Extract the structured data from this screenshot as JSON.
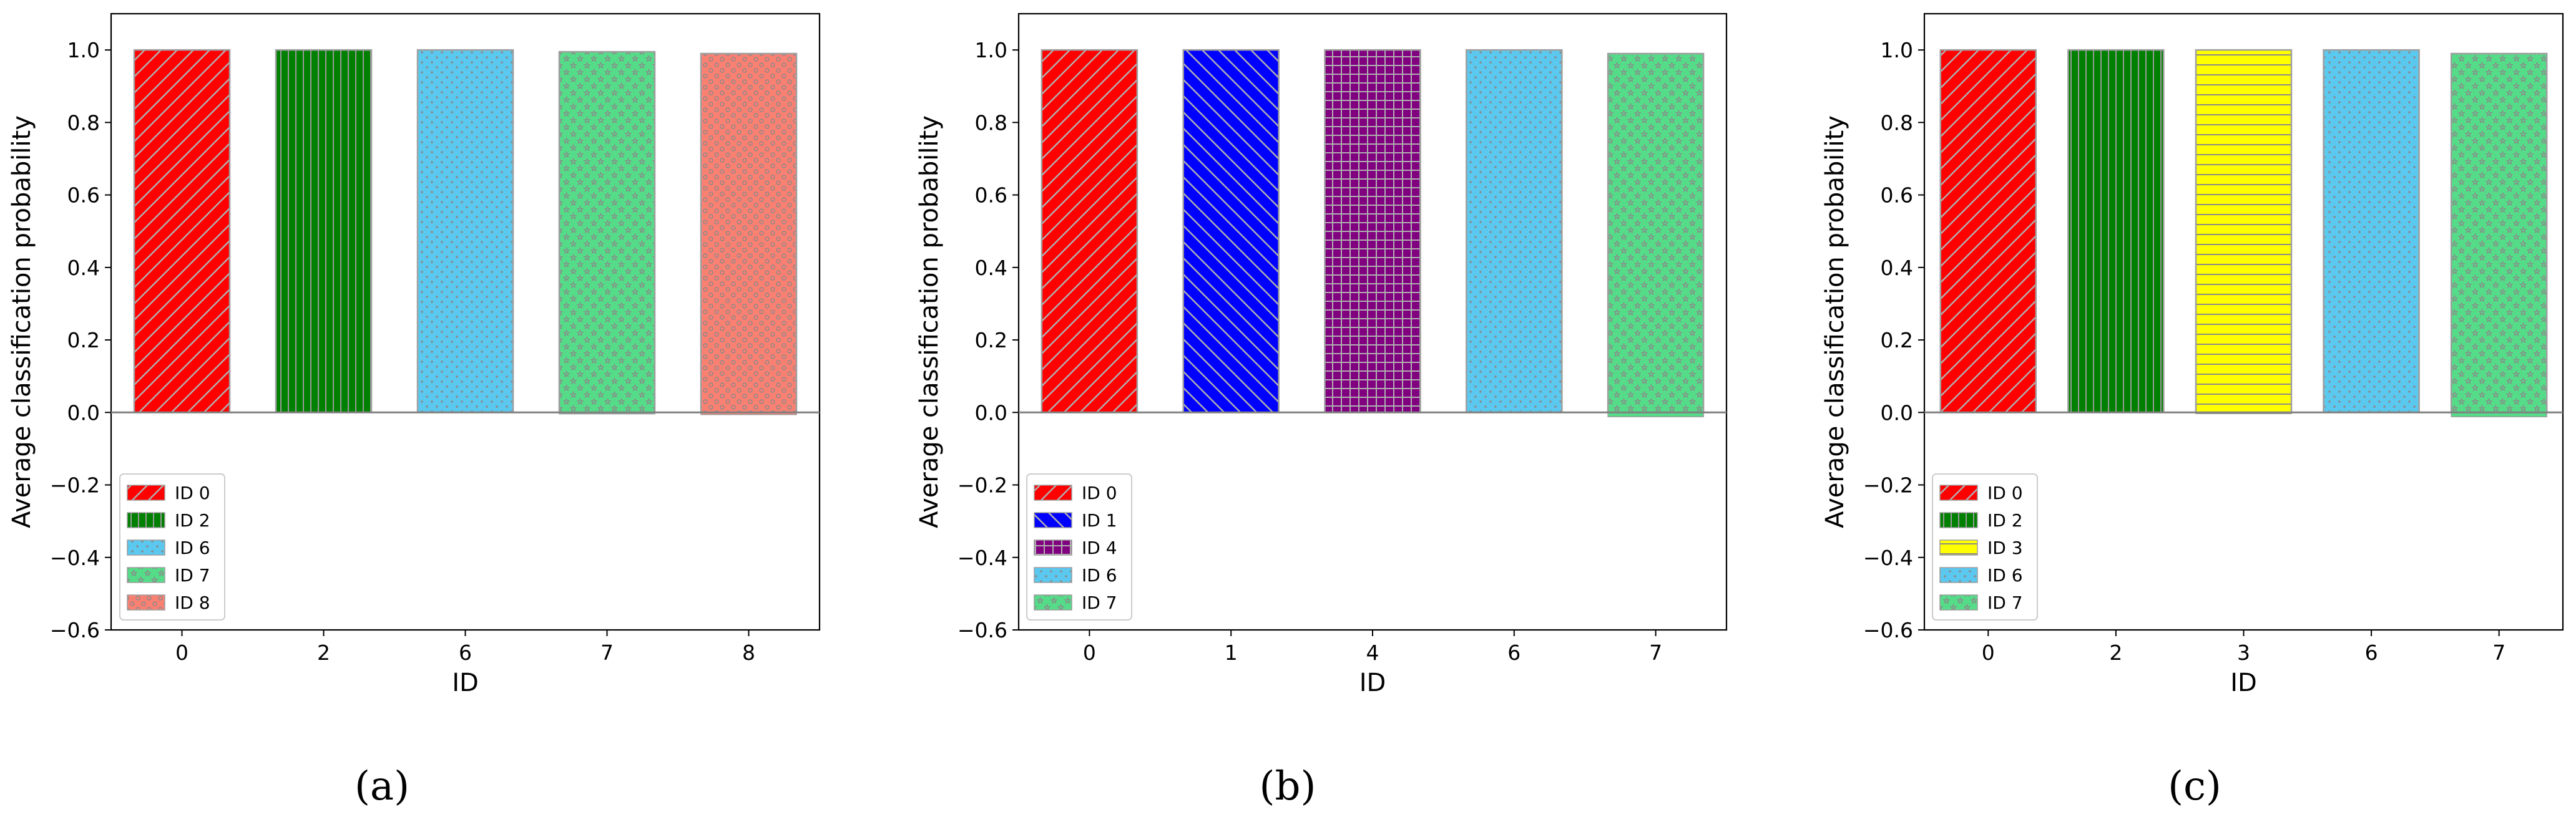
{
  "chart_data": [
    {
      "type": "bar",
      "panel_label": "(a)",
      "categories": [
        "0",
        "2",
        "6",
        "7",
        "8"
      ],
      "legend_labels": [
        "ID 0",
        "ID 2",
        "ID 6",
        "ID 7",
        "ID 8"
      ],
      "values": [
        1.0,
        1.0,
        1.0,
        0.995,
        0.99
      ],
      "negative_values": [
        0,
        0,
        0,
        -0.004,
        -0.006
      ],
      "colors": [
        "#ff0000",
        "#008000",
        "#5bc8ef",
        "#55dc88",
        "#fa8072"
      ],
      "patterns": [
        "diag-fwd",
        "vertical",
        "dots",
        "stars",
        "circles"
      ],
      "xlabel": "ID",
      "ylabel": "Average classification probability",
      "ylim": [
        -0.6,
        1.1
      ],
      "yticks": [
        "1.0",
        "0.8",
        "0.6",
        "0.4",
        "0.2",
        "0.0",
        "−0.2",
        "−0.4",
        "−0.6"
      ],
      "legend_position": "lower-left",
      "grid": false
    },
    {
      "type": "bar",
      "panel_label": "(b)",
      "categories": [
        "0",
        "1",
        "4",
        "6",
        "7"
      ],
      "legend_labels": [
        "ID 0",
        "ID 1",
        "ID 4",
        "ID 6",
        "ID 7"
      ],
      "values": [
        1.0,
        1.0,
        1.0,
        1.0,
        0.99
      ],
      "negative_values": [
        0,
        0,
        0,
        0,
        -0.012
      ],
      "colors": [
        "#ff0000",
        "#0000ff",
        "#800080",
        "#5bc8ef",
        "#55dc88"
      ],
      "patterns": [
        "diag-fwd",
        "diag-back",
        "grid",
        "dots",
        "stars"
      ],
      "xlabel": "ID",
      "ylabel": "Average classification probability",
      "ylim": [
        -0.6,
        1.1
      ],
      "yticks": [
        "1.0",
        "0.8",
        "0.6",
        "0.4",
        "0.2",
        "0.0",
        "−0.2",
        "−0.4",
        "−0.6"
      ],
      "legend_position": "lower-left",
      "grid": false
    },
    {
      "type": "bar",
      "panel_label": "(c)",
      "categories": [
        "0",
        "2",
        "3",
        "6",
        "7"
      ],
      "legend_labels": [
        "ID 0",
        "ID 2",
        "ID 3",
        "ID 6",
        "ID 7"
      ],
      "values": [
        1.0,
        1.0,
        1.0,
        1.0,
        0.99
      ],
      "negative_values": [
        0,
        0,
        -0.002,
        0,
        -0.012
      ],
      "colors": [
        "#ff0000",
        "#008000",
        "#ffff00",
        "#5bc8ef",
        "#55dc88"
      ],
      "patterns": [
        "diag-fwd",
        "vertical",
        "horizontal",
        "dots",
        "stars"
      ],
      "xlabel": "ID",
      "ylabel": "Average classification probability",
      "ylim": [
        -0.6,
        1.1
      ],
      "yticks": [
        "1.0",
        "0.8",
        "0.6",
        "0.4",
        "0.2",
        "0.0",
        "−0.2",
        "−0.4",
        "−0.6"
      ],
      "legend_position": "lower-left",
      "grid": false
    }
  ]
}
